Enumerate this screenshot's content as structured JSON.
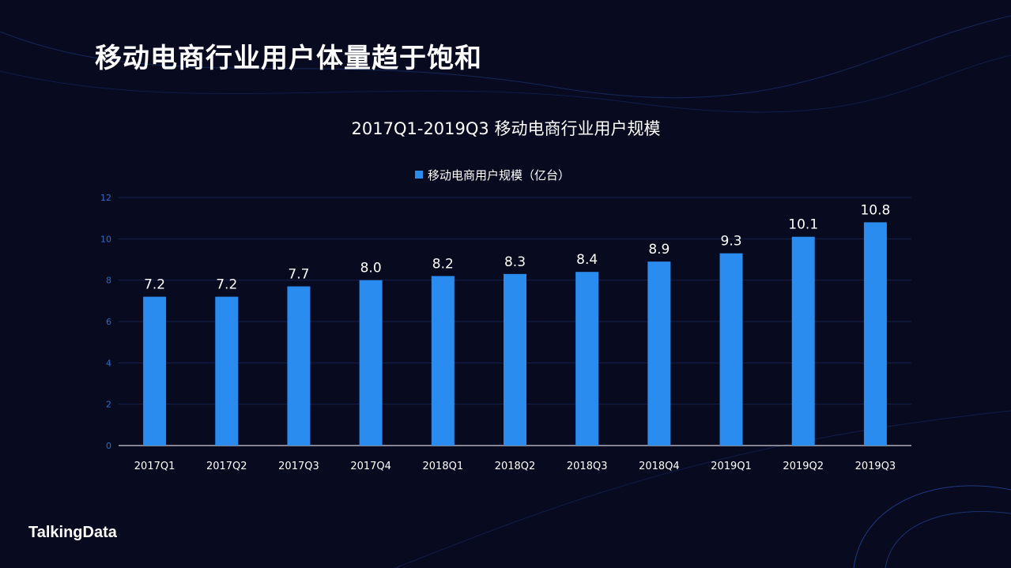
{
  "page_title": "移动电商行业用户体量趋于饱和",
  "logo_text": "TalkingData",
  "chart_data": {
    "type": "bar",
    "title": "2017Q1-2019Q3  移动电商行业用户规模",
    "legend": "移动电商用户规模（亿台）",
    "legend_position": "top-center",
    "categories": [
      "2017Q1",
      "2017Q2",
      "2017Q3",
      "2017Q4",
      "2018Q1",
      "2018Q2",
      "2018Q3",
      "2018Q4",
      "2019Q1",
      "2019Q2",
      "2019Q3"
    ],
    "values": [
      7.2,
      7.2,
      7.7,
      8.0,
      8.2,
      8.3,
      8.4,
      8.9,
      9.3,
      10.1,
      10.8
    ],
    "value_labels": [
      "7.2",
      "7.2",
      "7.7",
      "8.0",
      "8.2",
      "8.3",
      "8.4",
      "8.9",
      "9.3",
      "10.1",
      "10.8"
    ],
    "ylim": [
      0,
      12
    ],
    "yticks": [
      "0",
      "2",
      "4",
      "6",
      "8",
      "10",
      "12"
    ],
    "grid": true,
    "colors": {
      "bar": "#2b8cf0",
      "tick": "#2f6fc0",
      "grid": "#16214a"
    }
  }
}
